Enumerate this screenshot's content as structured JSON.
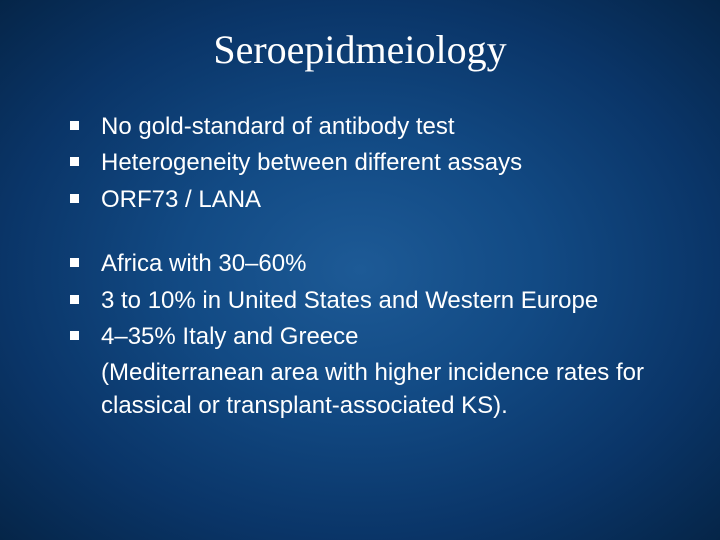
{
  "slide": {
    "title": "Seroepidmeiology",
    "title_fontsize": 40,
    "body_fontsize": 24,
    "text_color": "#ffffff",
    "bullet_color": "#ffffff",
    "bullet_size": 9,
    "background_gradient": {
      "type": "radial",
      "center_color": "#1d5a96",
      "mid_color": "#124a84",
      "outer_color": "#0a3568",
      "edge_color": "#052548"
    },
    "groups": [
      {
        "items": [
          "No gold-standard of antibody test",
          "Heterogeneity between different assays",
          "ORF73 / LANA"
        ]
      },
      {
        "items": [
          "Africa with 30–60%",
          "3 to 10% in United States and Western Europe",
          "4–35% Italy and Greece"
        ],
        "continuation": "(Mediterranean area with higher incidence rates for classical or transplant-associated KS)."
      }
    ]
  }
}
